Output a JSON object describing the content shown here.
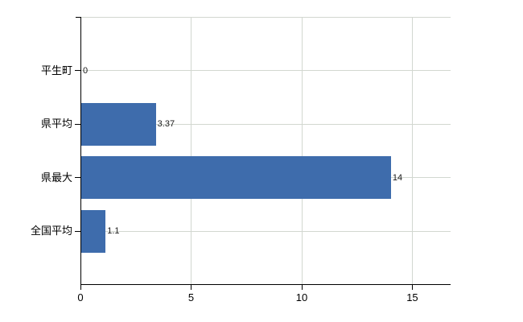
{
  "chart_data": {
    "type": "bar",
    "orientation": "horizontal",
    "title": "",
    "xlabel": "",
    "ylabel": "",
    "categories": [
      "平生町",
      "県平均",
      "県最大",
      "全国平均"
    ],
    "values": [
      0,
      3.37,
      14,
      1.1
    ],
    "value_labels": [
      "0",
      "3.37",
      "14",
      "1.1"
    ],
    "x_ticks": [
      0,
      5,
      10,
      15
    ],
    "x_tick_labels": [
      "0",
      "5",
      "10",
      "15"
    ],
    "xlim": [
      0,
      16.73
    ],
    "grid": "on",
    "legend": "none",
    "colors": {
      "bar": "#3e6cac",
      "gridline": "#d2d7d0",
      "axis": "#000000",
      "text": "#000000",
      "value_text": "#1a1a1a",
      "background": "#ffffff"
    }
  }
}
